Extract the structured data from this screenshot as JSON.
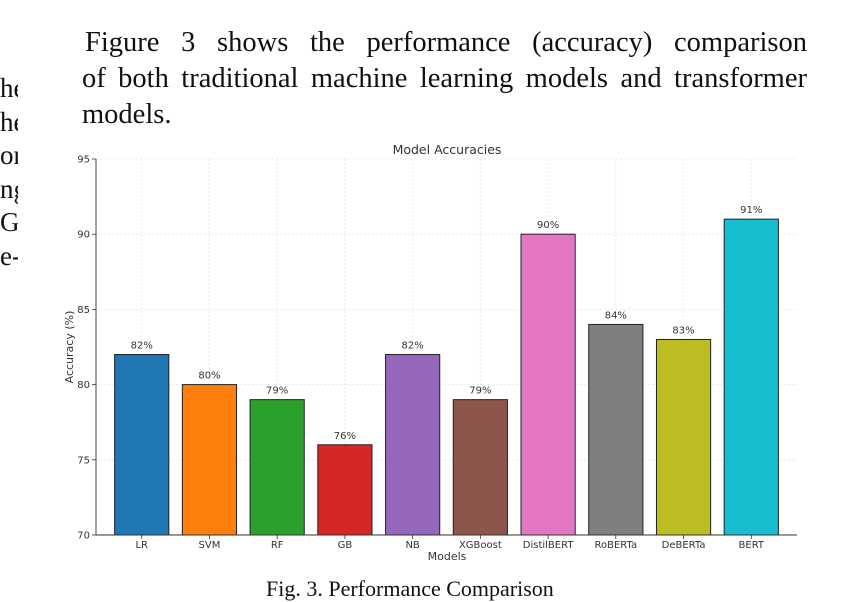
{
  "left_fragment": {
    "lines": [
      "he",
      "he",
      "or",
      "ng",
      "G-",
      "e-"
    ]
  },
  "paragraph": {
    "lines": [
      "Figure 3 shows the performance (accuracy) comparison",
      "of both traditional machine learning models and transformer",
      "models."
    ]
  },
  "caption": {
    "text": "Fig. 3.  Performance Comparison"
  },
  "chart_data": {
    "type": "bar",
    "title": "Model Accuracies",
    "xlabel": "Models",
    "ylabel": "Accuracy (%)",
    "categories": [
      "LR",
      "SVM",
      "RF",
      "GB",
      "NB",
      "XGBoost",
      "DistilBERT",
      "RoBERTa",
      "DeBERTa",
      "BERT"
    ],
    "values": [
      82,
      80,
      79,
      76,
      82,
      79,
      90,
      84,
      83,
      91
    ],
    "value_labels": [
      "82%",
      "80%",
      "79%",
      "76%",
      "82%",
      "79%",
      "90%",
      "84%",
      "83%",
      "91%"
    ],
    "colors": [
      "#1f77b4",
      "#ff7f0e",
      "#2ca02c",
      "#d62728",
      "#9467bd",
      "#8c564b",
      "#e377c2",
      "#7f7f7f",
      "#bcbd22",
      "#17becf"
    ],
    "ylim": [
      70,
      95
    ],
    "yticks": [
      70,
      75,
      80,
      85,
      90,
      95
    ],
    "grid": true
  }
}
